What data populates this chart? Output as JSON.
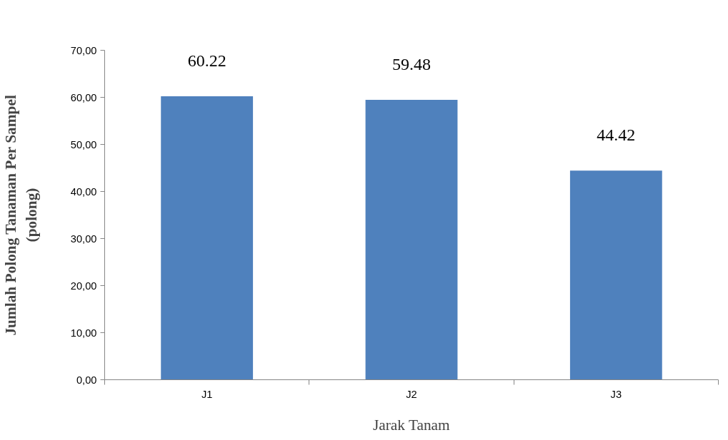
{
  "chart_data": {
    "type": "bar",
    "xlabel": "Jarak Tanam",
    "ylabel": "Jumlah Polong Tanaman Per Sampel\n(polong)",
    "categories": [
      "J1",
      "J2",
      "J3"
    ],
    "values": [
      60.22,
      59.48,
      44.42
    ],
    "color": "#4f81bd",
    "ylim": [
      0,
      70
    ],
    "yticks": [
      {
        "value": 0,
        "label": "0,00"
      },
      {
        "value": 10,
        "label": "10,00"
      },
      {
        "value": 20,
        "label": "20,00"
      },
      {
        "value": 30,
        "label": "30,00"
      },
      {
        "value": 40,
        "label": "40,00"
      },
      {
        "value": 50,
        "label": "50,00"
      },
      {
        "value": 60,
        "label": "60,00"
      },
      {
        "value": 70,
        "label": "70,00"
      }
    ],
    "data_labels": true,
    "grid": false
  }
}
